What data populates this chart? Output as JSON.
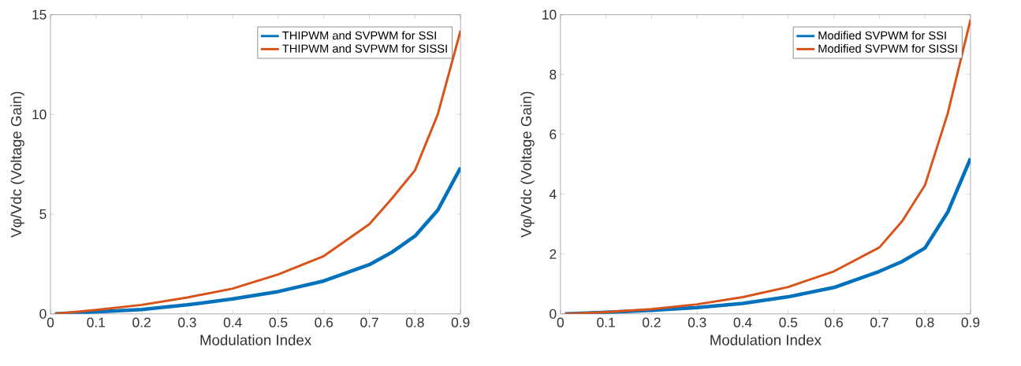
{
  "chart_data": [
    {
      "type": "line",
      "xlabel": "Modulation Index",
      "ylabel": "Vφ/Vdc (Voltage Gain)",
      "xlim": [
        0,
        0.9
      ],
      "ylim": [
        0,
        15
      ],
      "xticks": [
        0,
        0.1,
        0.2,
        0.3,
        0.4,
        0.5,
        0.6,
        0.7,
        0.8,
        0.9
      ],
      "yticks": [
        0,
        5,
        10,
        15
      ],
      "grid": false,
      "legend": "top right",
      "marker": "none",
      "line_style": "solid",
      "x": [
        0.01,
        0.1,
        0.2,
        0.3,
        0.4,
        0.5,
        0.6,
        0.7,
        0.75,
        0.8,
        0.85,
        0.9
      ],
      "series": [
        {
          "name": "THIPWM and SVPWM for SSI",
          "color": "#0072bd",
          "values": [
            0,
            0.1,
            0.22,
            0.45,
            0.75,
            1.12,
            1.65,
            2.47,
            3.1,
            3.9,
            5.2,
            7.33
          ]
        },
        {
          "name": "THIPWM and SVPWM for SISSI",
          "color": "#d95319",
          "values": [
            0,
            0.2,
            0.45,
            0.82,
            1.27,
            1.98,
            2.9,
            4.5,
            5.8,
            7.2,
            10.0,
            14.2
          ]
        }
      ]
    },
    {
      "type": "line",
      "xlabel": "Modulation Index",
      "ylabel": "Vφ/Vdc (Voltage Gain)",
      "xlim": [
        0,
        0.9
      ],
      "ylim": [
        0,
        10
      ],
      "xticks": [
        0,
        0.1,
        0.2,
        0.3,
        0.4,
        0.5,
        0.6,
        0.7,
        0.8,
        0.9
      ],
      "yticks": [
        0,
        2,
        4,
        6,
        8,
        10
      ],
      "grid": false,
      "legend": "top right",
      "marker": "none",
      "line_style": "solid",
      "x": [
        0.01,
        0.1,
        0.2,
        0.3,
        0.4,
        0.5,
        0.6,
        0.7,
        0.75,
        0.8,
        0.85,
        0.9
      ],
      "series": [
        {
          "name": "Modified SVPWM for SSI",
          "color": "#0072bd",
          "values": [
            0,
            0.05,
            0.12,
            0.21,
            0.35,
            0.57,
            0.88,
            1.42,
            1.75,
            2.2,
            3.4,
            5.2
          ]
        },
        {
          "name": "Modified SVPWM for SISSI",
          "color": "#d95319",
          "values": [
            0,
            0.06,
            0.16,
            0.32,
            0.56,
            0.9,
            1.42,
            2.22,
            3.1,
            4.3,
            6.7,
            9.84
          ]
        }
      ]
    }
  ]
}
